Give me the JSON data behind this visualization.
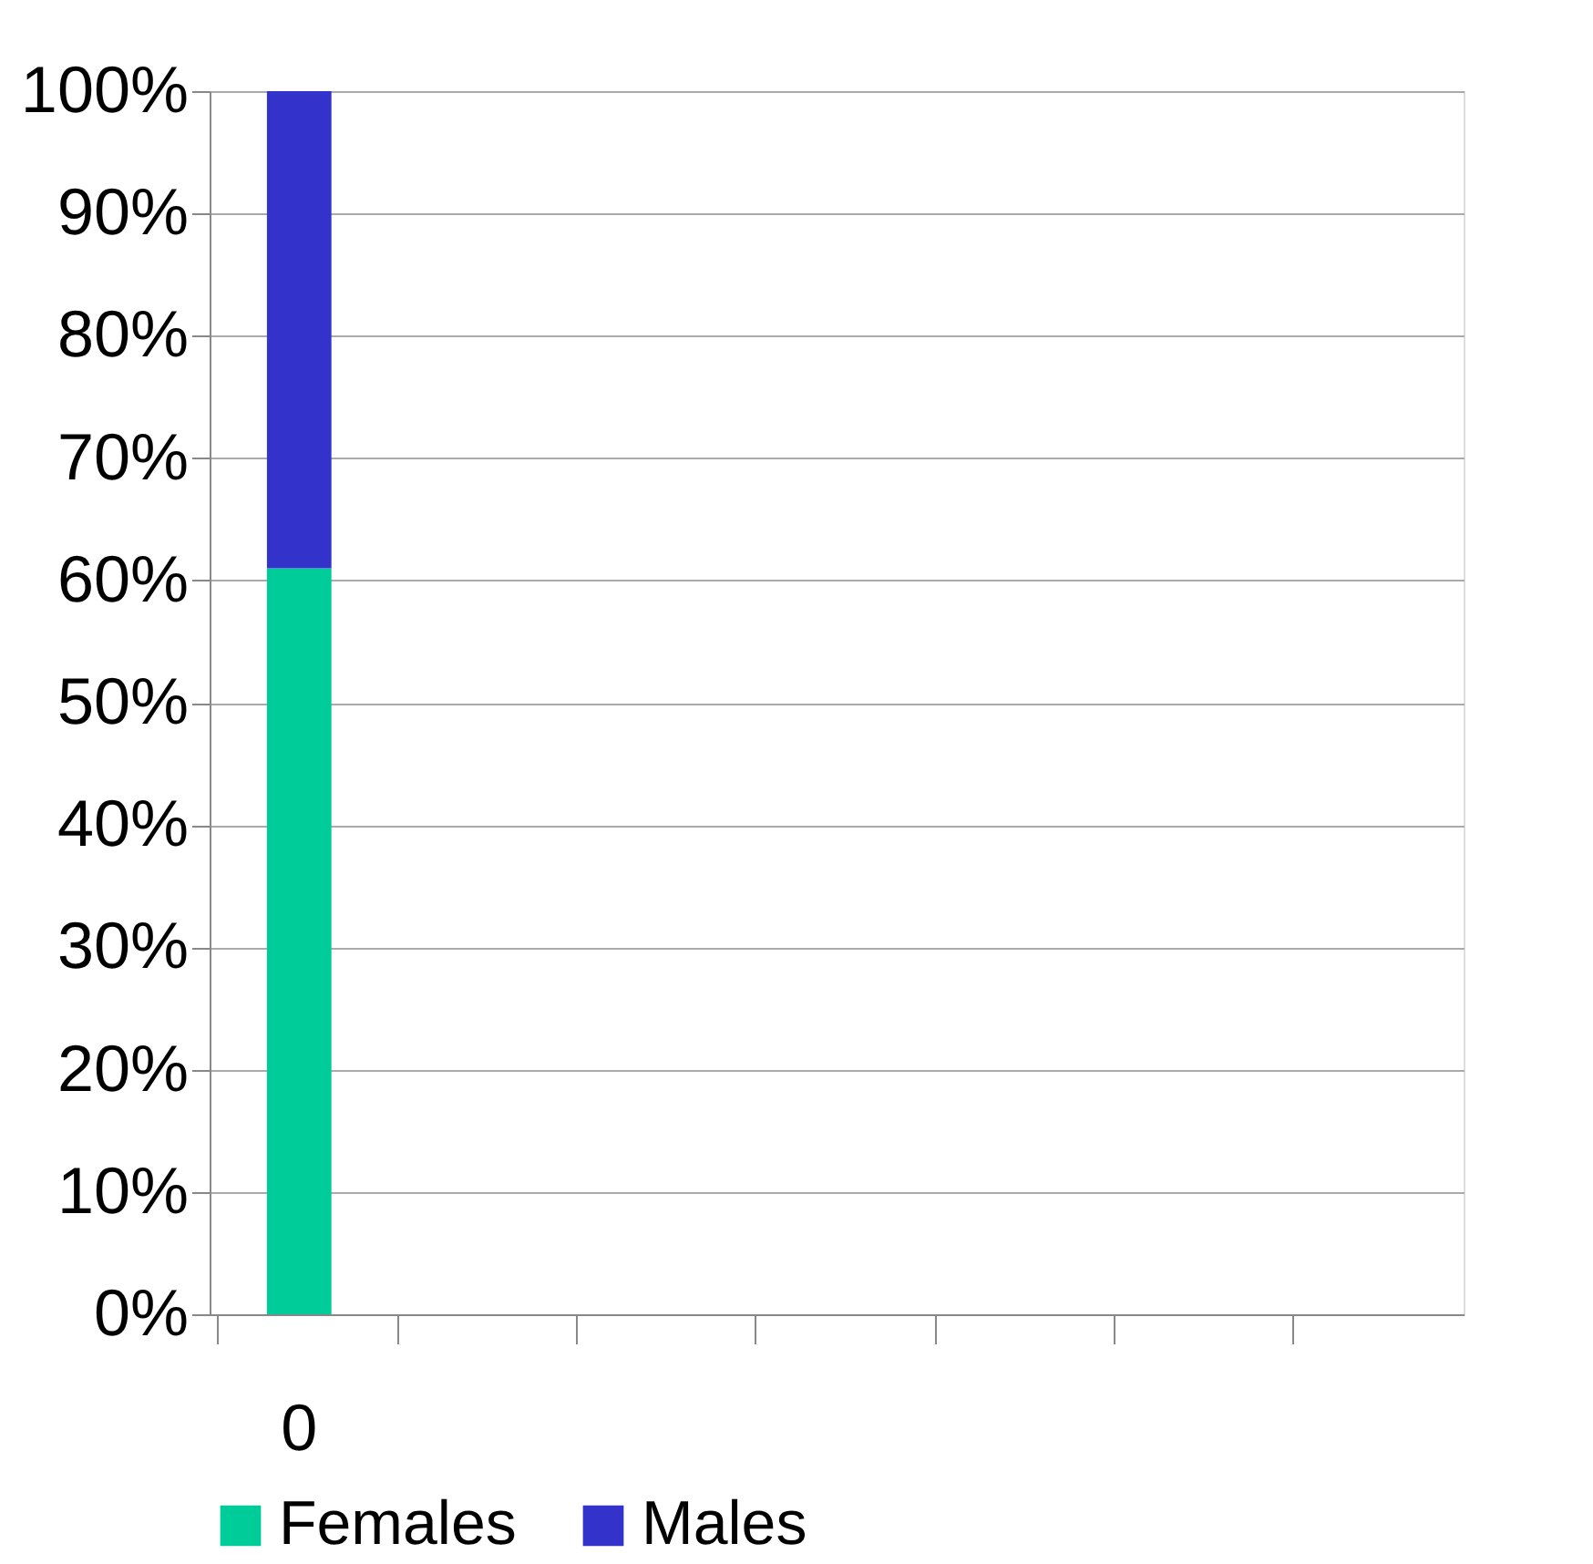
{
  "chart_data": {
    "type": "bar",
    "stacked": true,
    "categories": [
      "0",
      null,
      null,
      null,
      null,
      null,
      null
    ],
    "series": [
      {
        "name": "Females",
        "color": "#00cc99",
        "values": [
          61,
          null,
          null,
          null,
          null,
          null,
          null
        ]
      },
      {
        "name": "Males",
        "color": "#3333cc",
        "values": [
          39,
          null,
          null,
          null,
          null,
          null,
          null
        ]
      }
    ],
    "ylim": [
      0,
      100
    ],
    "yticks": [
      {
        "value": 0,
        "label": "0%"
      },
      {
        "value": 10,
        "label": "10%"
      },
      {
        "value": 20,
        "label": "20%"
      },
      {
        "value": 30,
        "label": "30%"
      },
      {
        "value": 40,
        "label": "40%"
      },
      {
        "value": 50,
        "label": "50%"
      },
      {
        "value": 60,
        "label": "60%"
      },
      {
        "value": 70,
        "label": "70%"
      },
      {
        "value": 80,
        "label": "80%"
      },
      {
        "value": 90,
        "label": "90%"
      },
      {
        "value": 100,
        "label": "100%"
      }
    ],
    "grid": "y",
    "legend": "bottom"
  }
}
